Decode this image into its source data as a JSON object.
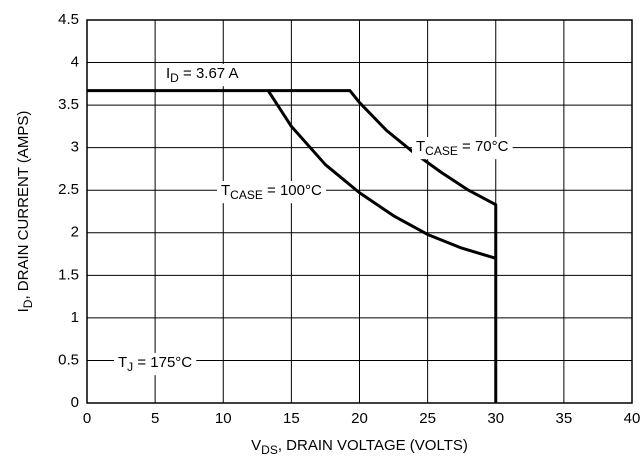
{
  "chart_data": {
    "type": "line",
    "x_label": {
      "main": "V",
      "sub": "DS",
      "rest": ", DRAIN VOLTAGE (VOLTS)"
    },
    "y_label": {
      "main": "I",
      "sub": "D",
      "rest": ", DRAIN CURRENT (AMPS)"
    },
    "annotations": [
      {
        "main": "I",
        "sub": "D",
        "rest": " = 3.67 A"
      },
      {
        "main": "T",
        "sub": "CASE",
        "rest": " = 70°C"
      },
      {
        "main": "T",
        "sub": "CASE",
        "rest": " = 100°C"
      },
      {
        "main": "T",
        "sub": "J",
        "rest": " = 175°C"
      }
    ],
    "series": [
      {
        "color": "#000000",
        "x": [
          0,
          19.3,
          20,
          22,
          24,
          26,
          28,
          30,
          30
        ],
        "values": [
          3.67,
          3.67,
          3.53,
          3.2,
          2.94,
          2.71,
          2.5,
          2.33,
          0
        ]
      },
      {
        "color": "#000000",
        "x": [
          13.3,
          15,
          17.5,
          20,
          22.5,
          25,
          27.5,
          30
        ],
        "values": [
          3.67,
          3.25,
          2.8,
          2.47,
          2.2,
          1.98,
          1.82,
          1.7
        ]
      }
    ],
    "xlim": [
      0,
      40
    ],
    "xticks": [
      0,
      5,
      10,
      15,
      20,
      25,
      30,
      35,
      40
    ],
    "ylim": [
      0,
      4.5
    ],
    "yticks": [
      0,
      0.5,
      1,
      1.5,
      2,
      2.5,
      3,
      3.5,
      4,
      4.5
    ],
    "grid": true
  }
}
